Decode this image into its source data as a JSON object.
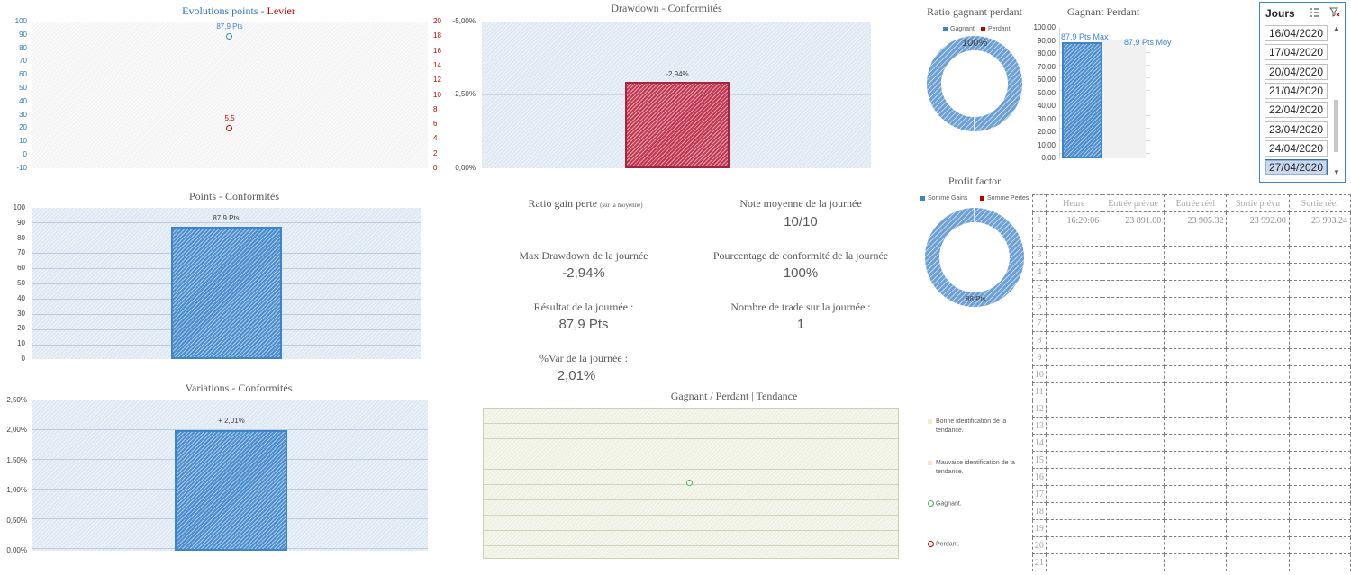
{
  "colors": {
    "accent_blue": "#3d85c6",
    "accent_red": "#c00000",
    "green": "#4caf50",
    "bar_red": "#c0354f"
  },
  "chart_evolution": {
    "title_points": "Evolutions points",
    "title_sep": " - ",
    "title_levier": "Levier",
    "left_ticks": [
      "100",
      "90",
      "80",
      "70",
      "60",
      "50",
      "40",
      "30",
      "20",
      "10",
      "0",
      "-10"
    ],
    "right_ticks": [
      "20",
      "18",
      "16",
      "14",
      "12",
      "10",
      "8",
      "6",
      "4",
      "2",
      "0"
    ],
    "points_label": "87,9 Pts",
    "levier_label": "5,5"
  },
  "chart_drawdown": {
    "title": "Drawdown - Conformités",
    "ticks": [
      "-5,00%",
      "-2,50%",
      "0,00%"
    ],
    "bar_label": "-2,94%"
  },
  "chart_ratio": {
    "title": "Ratio gagnant perdant",
    "legend_gagnant": "Gagnant",
    "legend_perdant": "Perdant",
    "donut_label": "100%"
  },
  "chart_gagnant_perdant": {
    "title": "Gagnant Perdant",
    "ticks": [
      "100,00",
      "90,00",
      "80,00",
      "70,00",
      "60,00",
      "50,00",
      "40,00",
      "30,00",
      "20,00",
      "10,00",
      "0,00"
    ],
    "max_label": "87,9 Pts Max",
    "moy_label": "87,9 Pts Moy"
  },
  "slicer": {
    "title": "Jours",
    "items": [
      "16/04/2020",
      "17/04/2020",
      "20/04/2020",
      "21/04/2020",
      "22/04/2020",
      "23/04/2020",
      "24/04/2020",
      "27/04/2020"
    ],
    "selected_index": 7
  },
  "chart_points": {
    "title": "Points - Conformités",
    "ticks": [
      "100",
      "90",
      "80",
      "70",
      "60",
      "50",
      "40",
      "30",
      "20",
      "10",
      "0"
    ],
    "bar_label": "87,9 Pts"
  },
  "kpis": {
    "ratio_label": "Ratio gain perte",
    "ratio_note": "(sur la moyenne)",
    "note_label": "Note moyenne de la journée",
    "note_value": "10/10",
    "maxdd_label": "Max Drawdown de la journée",
    "maxdd_value": "-2,94%",
    "conformite_label": "Pourcentage de conformité de la journée",
    "conformite_value": "100%",
    "resultat_label": "Résultat de la journée :",
    "resultat_value": "87,9 Pts",
    "nbtrade_label": "Nombre de trade sur la journée :",
    "nbtrade_value": "1",
    "var_label": "%Var de la journée :",
    "var_value": "2,01%"
  },
  "chart_profit": {
    "title": "Profit factor",
    "legend_gains": "Somme Gains",
    "legend_pertes": "Somme Pertes",
    "donut_label": "88 Pts"
  },
  "trades_table": {
    "headers": [
      "Heure",
      "Entrée prévue",
      "Entrée réel",
      "Sortie prévu",
      "Sortie réel"
    ],
    "rows": [
      [
        "16:20:06",
        "23 891.00",
        "23 905.32",
        "23 992.00",
        "23 993.24"
      ]
    ],
    "row_count": 21
  },
  "chart_variations": {
    "title": "Variations - Conformités",
    "ticks": [
      "2,50%",
      "2,00%",
      "1,50%",
      "1,00%",
      "0,50%",
      "0,00%"
    ],
    "bar_label": "+ 2,01%"
  },
  "chart_tendance": {
    "title": "Gagnant / Perdant | Tendance"
  },
  "tendance_legend": {
    "bonne": "Bonne identification de la tendance.",
    "mauvaise": "Mauvaise identification de la tendance.",
    "gagnant": "Gagnant.",
    "perdant": "Perdant."
  },
  "chart_data": [
    {
      "type": "scatter",
      "title": "Evolutions points - Levier",
      "series": [
        {
          "name": "Points",
          "values": [
            87.9
          ]
        },
        {
          "name": "Levier",
          "values": [
            5.5
          ]
        }
      ],
      "ylim": [
        -10,
        100
      ],
      "y2lim": [
        0,
        20
      ]
    },
    {
      "type": "bar",
      "title": "Drawdown - Conformités",
      "values": [
        -2.94
      ],
      "ylim": [
        0,
        -5
      ]
    },
    {
      "type": "pie",
      "title": "Ratio gagnant perdant",
      "series": [
        {
          "name": "Gagnant",
          "values": [
            100
          ]
        },
        {
          "name": "Perdant",
          "values": [
            0
          ]
        }
      ]
    },
    {
      "type": "bar",
      "title": "Gagnant Perdant",
      "values": [
        87.9,
        0
      ],
      "ylim": [
        0,
        100
      ]
    },
    {
      "type": "bar",
      "title": "Points - Conformités",
      "values": [
        87.9
      ],
      "ylim": [
        0,
        100
      ]
    },
    {
      "type": "pie",
      "title": "Profit factor",
      "series": [
        {
          "name": "Somme Gains",
          "values": [
            88
          ]
        },
        {
          "name": "Somme Pertes",
          "values": [
            0
          ]
        }
      ]
    },
    {
      "type": "bar",
      "title": "Variations - Conformités",
      "values": [
        2.01
      ],
      "ylim": [
        0,
        2.5
      ]
    },
    {
      "type": "scatter",
      "title": "Gagnant / Perdant | Tendance",
      "series": [
        {
          "values": [
            1
          ]
        }
      ]
    }
  ]
}
